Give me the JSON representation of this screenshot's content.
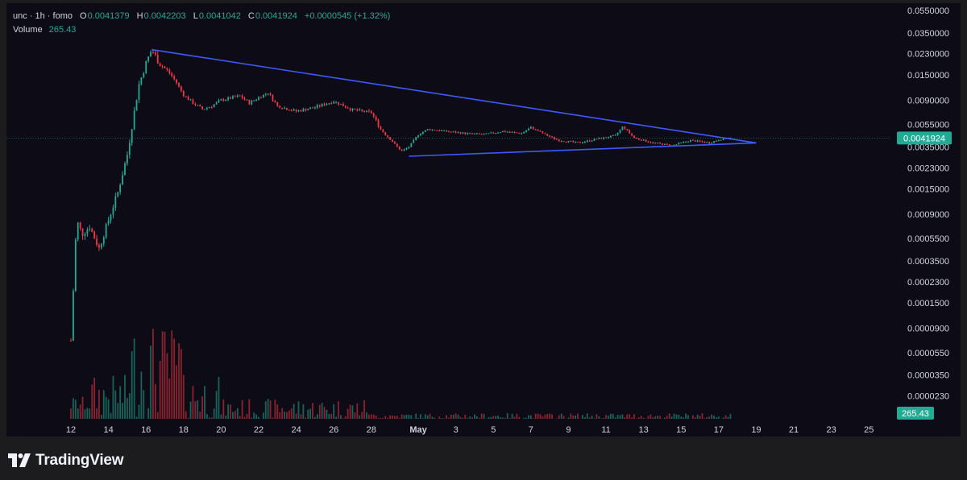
{
  "legend": {
    "symbol": "unc · 1h · fomo",
    "open_label": "O",
    "open": "0.0041379",
    "high_label": "H",
    "high": "0.0042203",
    "low_label": "L",
    "low": "0.0041042",
    "close_label": "C",
    "close": "0.0041924",
    "change": "+0.0000545 (+1.32%)",
    "volume_label": "Volume",
    "volume": "265.43"
  },
  "colors": {
    "background": "#0d0b16",
    "frame": "#1c1c1f",
    "up": "#22ab94",
    "down": "#f23645",
    "trendline": "#3d5afe",
    "axis_text": "#d1d4dc",
    "price_badge": "#22ab94"
  },
  "chart_data": {
    "type": "candlestick",
    "price_scale": "log",
    "ylim": [
      2e-05,
      0.056
    ],
    "y_ticks": [
      "0.0550000",
      "0.0350000",
      "0.0230000",
      "0.0150000",
      "0.0090000",
      "0.0055000",
      "0.0035000",
      "0.0023000",
      "0.0015000",
      "0.0009000",
      "0.0005500",
      "0.0003500",
      "0.0002300",
      "0.0001500",
      "0.0000900",
      "0.0000550",
      "0.0000350",
      "0.0000230"
    ],
    "x_ticks": [
      "12",
      "14",
      "16",
      "18",
      "20",
      "22",
      "24",
      "26",
      "28",
      "May",
      "3",
      "5",
      "7",
      "9",
      "11",
      "13",
      "15",
      "17",
      "19",
      "21",
      "23",
      "25"
    ],
    "x_tick_index": [
      0,
      2,
      4,
      6,
      8,
      10,
      12,
      14,
      16,
      18.5,
      20.5,
      22.5,
      24.5,
      26.5,
      28.5,
      30.5,
      32.5,
      34.5,
      36.5,
      38.5,
      40.5,
      42.5
    ],
    "current_price": "0.0041924",
    "current_volume": "265.43",
    "price_path": [
      [
        0,
        7e-05
      ],
      [
        0.3,
        0.0008
      ],
      [
        0.6,
        0.0006
      ],
      [
        1.0,
        0.0007
      ],
      [
        1.5,
        0.00045
      ],
      [
        2.0,
        0.0008
      ],
      [
        2.5,
        0.0014
      ],
      [
        3.0,
        0.003
      ],
      [
        3.3,
        0.006
      ],
      [
        3.6,
        0.012
      ],
      [
        4.0,
        0.019
      ],
      [
        4.3,
        0.025
      ],
      [
        4.7,
        0.019
      ],
      [
        5.2,
        0.016
      ],
      [
        5.6,
        0.013
      ],
      [
        6.0,
        0.01
      ],
      [
        6.5,
        0.0085
      ],
      [
        7.0,
        0.0075
      ],
      [
        7.5,
        0.008
      ],
      [
        8.0,
        0.009
      ],
      [
        9.0,
        0.0098
      ],
      [
        9.5,
        0.0085
      ],
      [
        10.0,
        0.0095
      ],
      [
        10.5,
        0.0105
      ],
      [
        11.0,
        0.008
      ],
      [
        12.0,
        0.0072
      ],
      [
        13.0,
        0.0078
      ],
      [
        14.0,
        0.0088
      ],
      [
        15.0,
        0.0074
      ],
      [
        16.0,
        0.007
      ],
      [
        16.5,
        0.005
      ],
      [
        17.0,
        0.0041
      ],
      [
        17.6,
        0.0032
      ],
      [
        18.0,
        0.0035
      ],
      [
        18.5,
        0.0045
      ],
      [
        19.0,
        0.005
      ],
      [
        20.0,
        0.0048
      ],
      [
        21.0,
        0.0046
      ],
      [
        22.0,
        0.0045
      ],
      [
        23.0,
        0.0048
      ],
      [
        24.0,
        0.0046
      ],
      [
        24.5,
        0.0052
      ],
      [
        25.5,
        0.0043
      ],
      [
        26.0,
        0.004
      ],
      [
        27.0,
        0.0038
      ],
      [
        28.0,
        0.0041
      ],
      [
        29.0,
        0.0044
      ],
      [
        29.4,
        0.0053
      ],
      [
        30.0,
        0.0042
      ],
      [
        31.0,
        0.0038
      ],
      [
        32.0,
        0.0036
      ],
      [
        33.0,
        0.004
      ],
      [
        34.0,
        0.0038
      ],
      [
        34.6,
        0.0041
      ],
      [
        35.2,
        0.0042
      ]
    ],
    "trendlines": [
      {
        "name": "upper",
        "from": [
          4.3,
          0.025
        ],
        "to": [
          36.5,
          0.0038
        ]
      },
      {
        "name": "lower",
        "from": [
          18.0,
          0.0029
        ],
        "to": [
          36.5,
          0.0038
        ]
      }
    ]
  },
  "brand": {
    "name": "TradingView"
  }
}
